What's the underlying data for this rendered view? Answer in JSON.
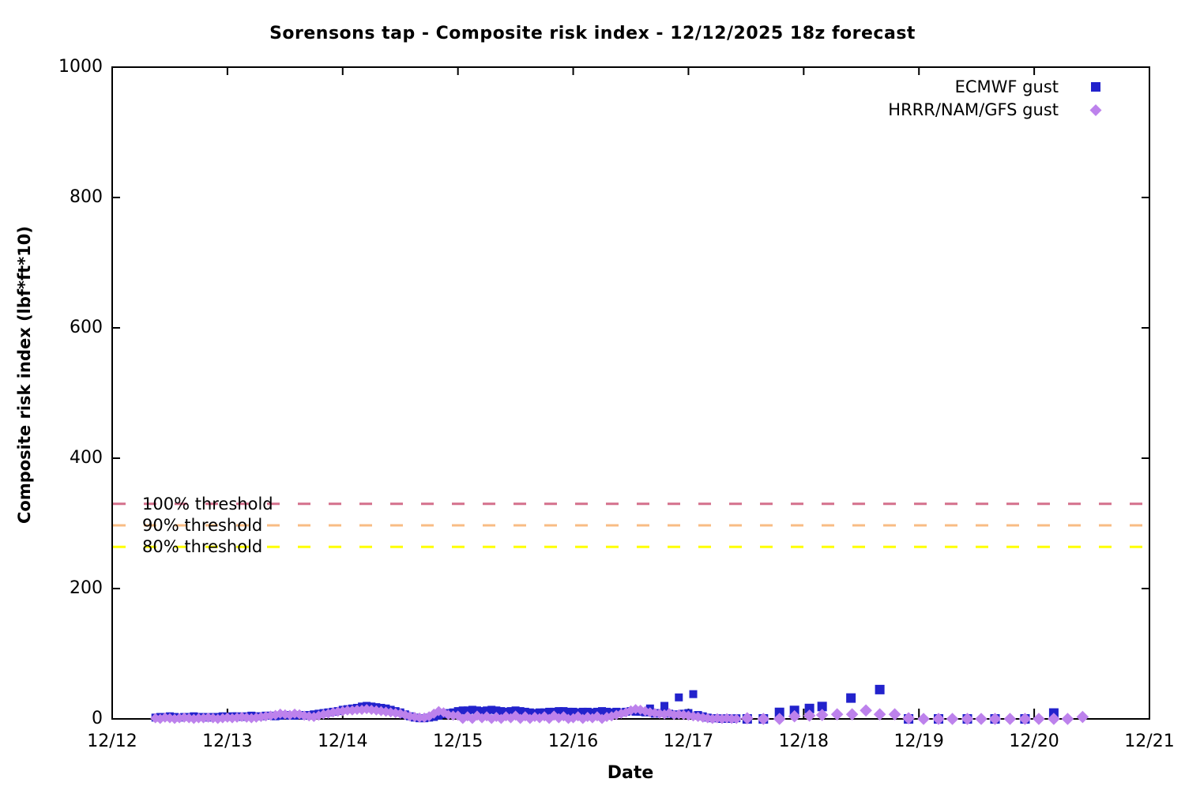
{
  "title": "Sorensons tap - Composite risk index - 12/12/2025 18z forecast",
  "chart_data": {
    "type": "scatter",
    "title": "Sorensons tap - Composite risk index - 12/12/2025 18z forecast",
    "xlabel": "Date",
    "ylabel": "Composite risk index (lbf*ft*10)",
    "x_ticks": [
      "12/12",
      "12/13",
      "12/14",
      "12/15",
      "12/16",
      "12/17",
      "12/18",
      "12/19",
      "12/20",
      "12/21"
    ],
    "y_ticks": [
      0,
      200,
      400,
      600,
      800,
      1000
    ],
    "ylim": [
      0,
      1000
    ],
    "xlim_days": [
      0,
      9
    ],
    "grid": false,
    "legend_position": "top-right-inside",
    "thresholds": [
      {
        "label": "100% threshold",
        "value": 330,
        "color": "#d4708c"
      },
      {
        "label": "90% threshold",
        "value": 297,
        "color": "#f8bc84"
      },
      {
        "label": "80% threshold",
        "value": 264,
        "color": "#ffff00"
      }
    ],
    "series": [
      {
        "name": "ECMWF gust",
        "marker": "square",
        "color": "#2222cc",
        "dense": {
          "start_day": 0.375,
          "step_days": 0.0416667,
          "values": [
            2,
            3,
            3,
            4,
            3,
            2,
            3,
            3,
            4,
            3,
            3,
            2,
            3,
            3,
            4,
            3,
            4,
            4,
            3,
            4,
            5,
            4,
            4,
            5,
            5,
            4,
            5,
            6,
            5,
            5,
            6,
            5,
            6,
            7,
            8,
            9,
            10,
            11,
            12,
            14,
            15,
            16,
            17,
            19,
            20,
            19,
            18,
            17,
            16,
            14,
            12,
            10,
            7,
            4,
            2,
            1,
            1,
            2,
            3,
            5,
            7,
            9,
            10,
            12,
            13,
            13,
            14,
            13,
            12,
            13,
            14,
            13,
            12,
            11,
            12,
            13,
            12,
            11,
            10,
            9,
            10,
            10,
            11,
            11,
            12,
            12,
            11,
            11,
            10,
            11,
            11,
            10,
            11,
            12,
            11,
            10,
            11,
            10,
            11,
            12,
            11,
            11,
            10,
            16,
            8,
            9,
            20,
            8,
            7,
            33,
            8,
            9,
            38,
            6,
            4,
            2,
            1,
            1,
            0,
            1,
            0,
            1
          ]
        },
        "sparse": [
          [
            5.51,
            0
          ],
          [
            5.65,
            0
          ],
          [
            5.79,
            10
          ],
          [
            5.92,
            13
          ],
          [
            6.05,
            16
          ],
          [
            6.16,
            19
          ],
          [
            6.41,
            32
          ],
          [
            6.66,
            45
          ],
          [
            6.91,
            0
          ],
          [
            7.17,
            0
          ],
          [
            7.42,
            0
          ],
          [
            7.66,
            0
          ],
          [
            7.92,
            0
          ],
          [
            8.17,
            9
          ]
        ]
      },
      {
        "name": "HRRR/NAM/GFS gust",
        "marker": "diamond",
        "color": "#bd82ec",
        "dense": {
          "start_day": 0.375,
          "step_days": 0.0416667,
          "values": [
            1,
            0,
            2,
            1,
            0,
            1,
            2,
            1,
            0,
            1,
            1,
            2,
            1,
            0,
            1,
            2,
            1,
            2,
            3,
            2,
            1,
            2,
            3,
            4,
            5,
            6,
            8,
            7,
            6,
            8,
            7,
            5,
            4,
            3,
            5,
            7,
            8,
            10,
            11,
            12,
            13,
            13,
            14,
            14,
            15,
            14,
            13,
            12,
            11,
            10,
            9,
            8,
            6,
            4,
            3,
            2,
            2,
            4,
            8,
            12,
            10,
            6,
            5,
            5,
            0,
            4,
            0,
            5,
            1,
            4,
            0,
            3,
            0,
            4,
            1,
            5,
            0,
            4,
            0,
            3,
            1,
            4,
            0,
            5,
            1,
            4,
            0,
            1,
            4,
            0,
            3,
            1,
            4,
            0,
            3,
            4,
            6,
            8,
            10,
            13,
            15,
            14,
            12,
            10,
            9,
            8,
            7,
            9,
            6,
            7,
            6,
            5,
            4,
            3,
            2,
            1,
            0,
            1,
            0,
            1,
            0,
            0
          ]
        },
        "sparse": [
          [
            5.51,
            1
          ],
          [
            5.65,
            0
          ],
          [
            5.79,
            0
          ],
          [
            5.92,
            4
          ],
          [
            6.05,
            5
          ],
          [
            6.16,
            6
          ],
          [
            6.29,
            7
          ],
          [
            6.42,
            7
          ],
          [
            6.54,
            13
          ],
          [
            6.66,
            7
          ],
          [
            6.79,
            7
          ],
          [
            6.91,
            1
          ],
          [
            7.04,
            0
          ],
          [
            7.17,
            0
          ],
          [
            7.29,
            0
          ],
          [
            7.42,
            0
          ],
          [
            7.54,
            0
          ],
          [
            7.66,
            0
          ],
          [
            7.79,
            0
          ],
          [
            7.92,
            0
          ],
          [
            8.04,
            0
          ],
          [
            8.17,
            0
          ],
          [
            8.29,
            0
          ],
          [
            8.42,
            3
          ]
        ]
      }
    ]
  }
}
